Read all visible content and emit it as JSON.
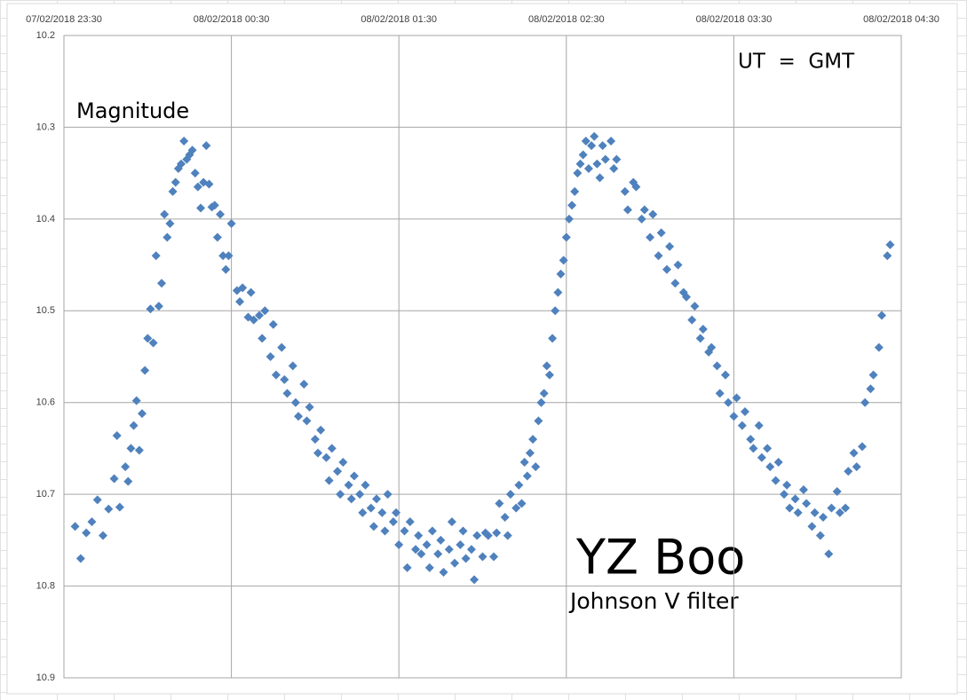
{
  "chart_data": {
    "type": "scatter",
    "annotations": [
      "Magnitude",
      "UT  =  GMT",
      "YZ Boo",
      "Johnson V filter"
    ],
    "color": "#4f81bd",
    "xlim": [
      "07/02/2018 23:30",
      "08/02/2018 04:30"
    ],
    "xticks": [
      "07/02/2018 23:30",
      "08/02/2018 00:30",
      "08/02/2018 01:30",
      "08/02/2018 02:30",
      "08/02/2018 03:30",
      "08/02/2018 04:30"
    ],
    "ylim": [
      10.2,
      10.9
    ],
    "y_reversed": true,
    "yticks": [
      10.2,
      10.3,
      10.4,
      10.5,
      10.6,
      10.7,
      10.8,
      10.9
    ],
    "grid": true,
    "x": [
      "07/02/2018 23:34",
      "07/02/2018 23:36",
      "07/02/2018 23:38",
      "07/02/2018 23:40",
      "07/02/2018 23:42",
      "07/02/2018 23:44",
      "07/02/2018 23:46",
      "07/02/2018 23:48",
      "07/02/2018 23:49",
      "07/02/2018 23:50",
      "07/02/2018 23:52",
      "07/02/2018 23:53",
      "07/02/2018 23:54",
      "07/02/2018 23:55",
      "07/02/2018 23:56",
      "07/02/2018 23:57",
      "07/02/2018 23:58",
      "07/02/2018 23:59",
      "08/02/2018 00:00",
      "08/02/2018 00:01",
      "08/02/2018 00:02",
      "08/02/2018 00:03",
      "08/02/2018 00:04",
      "08/02/2018 00:05",
      "08/02/2018 00:06",
      "08/02/2018 00:07",
      "08/02/2018 00:08",
      "08/02/2018 00:09",
      "08/02/2018 00:10",
      "08/02/2018 00:11",
      "08/02/2018 00:12",
      "08/02/2018 00:13",
      "08/02/2018 00:14",
      "08/02/2018 00:15",
      "08/02/2018 00:16",
      "08/02/2018 00:17",
      "08/02/2018 00:18",
      "08/02/2018 00:19",
      "08/02/2018 00:20",
      "08/02/2018 00:21",
      "08/02/2018 00:22",
      "08/02/2018 00:23",
      "08/02/2018 00:24",
      "08/02/2018 00:25",
      "08/02/2018 00:26",
      "08/02/2018 00:27",
      "08/02/2018 00:28",
      "08/02/2018 00:29",
      "08/02/2018 00:30",
      "08/02/2018 00:32",
      "08/02/2018 00:33",
      "08/02/2018 00:34",
      "08/02/2018 00:36",
      "08/02/2018 00:37",
      "08/02/2018 00:38",
      "08/02/2018 00:40",
      "08/02/2018 00:41",
      "08/02/2018 00:42",
      "08/02/2018 00:44",
      "08/02/2018 00:45",
      "08/02/2018 00:46",
      "08/02/2018 00:48",
      "08/02/2018 00:49",
      "08/02/2018 00:50",
      "08/02/2018 00:52",
      "08/02/2018 00:53",
      "08/02/2018 00:54",
      "08/02/2018 00:56",
      "08/02/2018 00:57",
      "08/02/2018 00:58",
      "08/02/2018 01:00",
      "08/02/2018 01:01",
      "08/02/2018 01:02",
      "08/02/2018 01:04",
      "08/02/2018 01:05",
      "08/02/2018 01:06",
      "08/02/2018 01:08",
      "08/02/2018 01:09",
      "08/02/2018 01:10",
      "08/02/2018 01:12",
      "08/02/2018 01:13",
      "08/02/2018 01:14",
      "08/02/2018 01:16",
      "08/02/2018 01:17",
      "08/02/2018 01:18",
      "08/02/2018 01:20",
      "08/02/2018 01:21",
      "08/02/2018 01:22",
      "08/02/2018 01:24",
      "08/02/2018 01:25",
      "08/02/2018 01:26",
      "08/02/2018 01:28",
      "08/02/2018 01:29",
      "08/02/2018 01:30",
      "08/02/2018 01:32",
      "08/02/2018 01:33",
      "08/02/2018 01:34",
      "08/02/2018 01:36",
      "08/02/2018 01:37",
      "08/02/2018 01:38",
      "08/02/2018 01:40",
      "08/02/2018 01:41",
      "08/02/2018 01:42",
      "08/02/2018 01:44",
      "08/02/2018 01:45",
      "08/02/2018 01:46",
      "08/02/2018 01:48",
      "08/02/2018 01:49",
      "08/02/2018 01:50",
      "08/02/2018 01:52",
      "08/02/2018 01:53",
      "08/02/2018 01:54",
      "08/02/2018 01:56",
      "08/02/2018 01:57",
      "08/02/2018 01:58",
      "08/02/2018 02:00",
      "08/02/2018 02:01",
      "08/02/2018 02:02",
      "08/02/2018 02:04",
      "08/02/2018 02:05",
      "08/02/2018 02:06",
      "08/02/2018 02:08",
      "08/02/2018 02:09",
      "08/02/2018 02:10",
      "08/02/2018 02:12",
      "08/02/2018 02:13",
      "08/02/2018 02:14",
      "08/02/2018 02:15",
      "08/02/2018 02:16",
      "08/02/2018 02:17",
      "08/02/2018 02:18",
      "08/02/2018 02:19",
      "08/02/2018 02:20",
      "08/02/2018 02:21",
      "08/02/2018 02:22",
      "08/02/2018 02:23",
      "08/02/2018 02:24",
      "08/02/2018 02:25",
      "08/02/2018 02:26",
      "08/02/2018 02:27",
      "08/02/2018 02:28",
      "08/02/2018 02:29",
      "08/02/2018 02:30",
      "08/02/2018 02:31",
      "08/02/2018 02:32",
      "08/02/2018 02:33",
      "08/02/2018 02:34",
      "08/02/2018 02:35",
      "08/02/2018 02:36",
      "08/02/2018 02:37",
      "08/02/2018 02:38",
      "08/02/2018 02:39",
      "08/02/2018 02:40",
      "08/02/2018 02:41",
      "08/02/2018 02:42",
      "08/02/2018 02:43",
      "08/02/2018 02:44",
      "08/02/2018 02:46",
      "08/02/2018 02:47",
      "08/02/2018 02:48",
      "08/02/2018 02:51",
      "08/02/2018 02:52",
      "08/02/2018 02:54",
      "08/02/2018 02:55",
      "08/02/2018 02:57",
      "08/02/2018 02:58",
      "08/02/2018 03:00",
      "08/02/2018 03:01",
      "08/02/2018 03:03",
      "08/02/2018 03:04",
      "08/02/2018 03:06",
      "08/02/2018 03:07",
      "08/02/2018 03:09",
      "08/02/2018 03:10",
      "08/02/2018 03:12",
      "08/02/2018 03:13",
      "08/02/2018 03:15",
      "08/02/2018 03:16",
      "08/02/2018 03:18",
      "08/02/2018 03:19",
      "08/02/2018 03:21",
      "08/02/2018 03:22",
      "08/02/2018 03:24",
      "08/02/2018 03:25",
      "08/02/2018 03:27",
      "08/02/2018 03:28",
      "08/02/2018 03:30",
      "08/02/2018 03:31",
      "08/02/2018 03:33",
      "08/02/2018 03:34",
      "08/02/2018 03:36",
      "08/02/2018 03:37",
      "08/02/2018 03:39",
      "08/02/2018 03:40",
      "08/02/2018 03:42",
      "08/02/2018 03:43",
      "08/02/2018 03:45",
      "08/02/2018 03:46",
      "08/02/2018 03:48",
      "08/02/2018 03:49",
      "08/02/2018 03:50",
      "08/02/2018 03:52",
      "08/02/2018 03:53",
      "08/02/2018 03:55",
      "08/02/2018 03:56",
      "08/02/2018 03:58",
      "08/02/2018 03:59",
      "08/02/2018 04:01",
      "08/02/2018 04:02",
      "08/02/2018 04:04",
      "08/02/2018 04:05",
      "08/02/2018 04:07",
      "08/02/2018 04:08",
      "08/02/2018 04:10",
      "08/02/2018 04:11",
      "08/02/2018 04:13",
      "08/02/2018 04:14",
      "08/02/2018 04:16",
      "08/02/2018 04:17",
      "08/02/2018 04:19",
      "08/02/2018 04:20",
      "08/02/2018 04:22",
      "08/02/2018 04:23",
      "08/02/2018 04:25",
      "08/02/2018 04:26"
    ],
    "values": [
      10.735,
      10.77,
      10.742,
      10.73,
      10.706,
      10.745,
      10.716,
      10.683,
      10.636,
      10.714,
      10.67,
      10.686,
      10.65,
      10.625,
      10.598,
      10.652,
      10.612,
      10.565,
      10.53,
      10.498,
      10.535,
      10.44,
      10.495,
      10.47,
      10.395,
      10.42,
      10.405,
      10.37,
      10.36,
      10.345,
      10.34,
      10.315,
      10.335,
      10.33,
      10.325,
      10.35,
      10.365,
      10.388,
      10.36,
      10.32,
      10.362,
      10.387,
      10.385,
      10.42,
      10.395,
      10.44,
      10.455,
      10.44,
      10.405,
      10.478,
      10.49,
      10.475,
      10.507,
      10.48,
      10.51,
      10.505,
      10.53,
      10.5,
      10.55,
      10.515,
      10.57,
      10.54,
      10.575,
      10.59,
      10.56,
      10.6,
      10.615,
      10.58,
      10.62,
      10.605,
      10.64,
      10.655,
      10.63,
      10.66,
      10.685,
      10.65,
      10.675,
      10.7,
      10.665,
      10.69,
      10.705,
      10.68,
      10.7,
      10.72,
      10.69,
      10.715,
      10.735,
      10.705,
      10.72,
      10.74,
      10.7,
      10.73,
      10.72,
      10.755,
      10.74,
      10.78,
      10.73,
      10.76,
      10.745,
      10.765,
      10.755,
      10.78,
      10.74,
      10.765,
      10.75,
      10.785,
      10.76,
      10.73,
      10.775,
      10.755,
      10.74,
      10.77,
      10.76,
      10.793,
      10.745,
      10.768,
      10.742,
      10.745,
      10.768,
      10.742,
      10.71,
      10.725,
      10.745,
      10.7,
      10.715,
      10.69,
      10.71,
      10.665,
      10.68,
      10.655,
      10.64,
      10.67,
      10.62,
      10.6,
      10.59,
      10.56,
      10.57,
      10.53,
      10.5,
      10.48,
      10.46,
      10.445,
      10.42,
      10.4,
      10.385,
      10.37,
      10.35,
      10.34,
      10.33,
      10.315,
      10.345,
      10.32,
      10.31,
      10.34,
      10.355,
      10.32,
      10.335,
      10.315,
      10.345,
      10.335,
      10.37,
      10.39,
      10.36,
      10.365,
      10.4,
      10.39,
      10.42,
      10.395,
      10.44,
      10.415,
      10.455,
      10.43,
      10.47,
      10.45,
      10.48,
      10.485,
      10.51,
      10.495,
      10.53,
      10.52,
      10.545,
      10.54,
      10.56,
      10.59,
      10.57,
      10.6,
      10.615,
      10.595,
      10.625,
      10.61,
      10.64,
      10.65,
      10.625,
      10.66,
      10.65,
      10.67,
      10.685,
      10.665,
      10.7,
      10.69,
      10.715,
      10.705,
      10.72,
      10.695,
      10.71,
      10.735,
      10.72,
      10.745,
      10.725,
      10.765,
      10.715,
      10.697,
      10.72,
      10.715,
      10.675,
      10.655,
      10.67,
      10.648,
      10.6,
      10.585,
      10.57,
      10.54,
      10.505,
      10.44,
      10.428
    ]
  }
}
